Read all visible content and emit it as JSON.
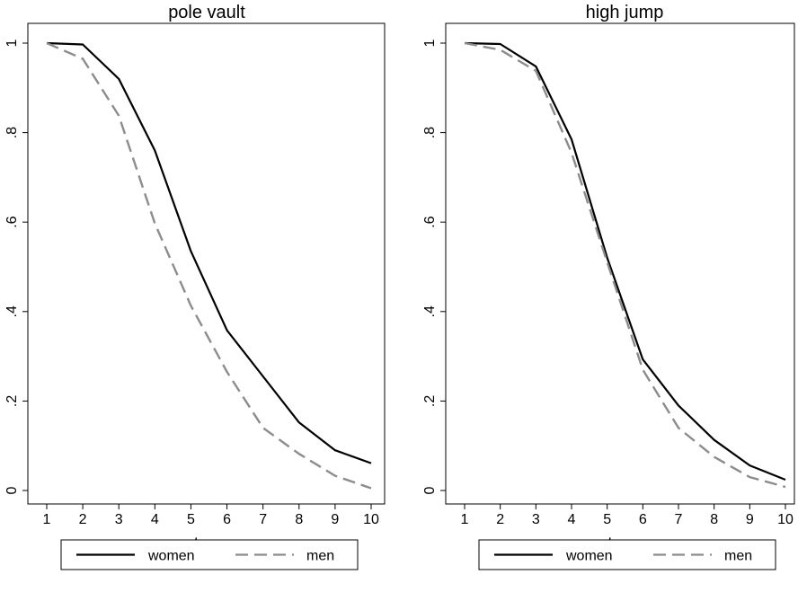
{
  "chart_data": [
    {
      "type": "line",
      "title": "pole vault",
      "xlabel": "stage",
      "ylabel": "",
      "x": [
        1,
        2,
        3,
        4,
        5,
        6,
        7,
        8,
        9,
        10
      ],
      "xlim": [
        1,
        10
      ],
      "ylim": [
        0,
        1
      ],
      "yticks": [
        0,
        0.2,
        0.4,
        0.6,
        0.8,
        1
      ],
      "ytick_labels": [
        "0",
        ".2",
        ".4",
        ".6",
        ".8",
        "1"
      ],
      "xtick_labels": [
        "1",
        "2",
        "3",
        "4",
        "5",
        "6",
        "7",
        "8",
        "9",
        "10"
      ],
      "grid": false,
      "legend_position": "bottom",
      "series": [
        {
          "name": "women",
          "color": "#000000",
          "dash": "solid",
          "values": [
            1.0,
            0.997,
            0.92,
            0.76,
            0.535,
            0.358,
            0.255,
            0.152,
            0.09,
            0.061
          ]
        },
        {
          "name": "men",
          "color": "#8c8c8c",
          "dash": "dashed",
          "values": [
            1.0,
            0.965,
            0.838,
            0.597,
            0.413,
            0.265,
            0.14,
            0.082,
            0.033,
            0.005
          ]
        }
      ]
    },
    {
      "type": "line",
      "title": "high jump",
      "xlabel": "stage",
      "ylabel": "",
      "x": [
        1,
        2,
        3,
        4,
        5,
        6,
        7,
        8,
        9,
        10
      ],
      "xlim": [
        1,
        10
      ],
      "ylim": [
        0,
        1
      ],
      "yticks": [
        0,
        0.2,
        0.4,
        0.6,
        0.8,
        1
      ],
      "ytick_labels": [
        "0",
        ".2",
        ".4",
        ".6",
        ".8",
        "1"
      ],
      "xtick_labels": [
        "1",
        "2",
        "3",
        "4",
        "5",
        "6",
        "7",
        "8",
        "9",
        "10"
      ],
      "grid": false,
      "legend_position": "bottom",
      "series": [
        {
          "name": "women",
          "color": "#000000",
          "dash": "solid",
          "values": [
            1.0,
            0.998,
            0.948,
            0.785,
            0.52,
            0.293,
            0.19,
            0.113,
            0.056,
            0.024
          ]
        },
        {
          "name": "men",
          "color": "#8c8c8c",
          "dash": "dashed",
          "values": [
            1.0,
            0.985,
            0.938,
            0.755,
            0.51,
            0.27,
            0.14,
            0.075,
            0.03,
            0.008
          ]
        }
      ]
    }
  ]
}
